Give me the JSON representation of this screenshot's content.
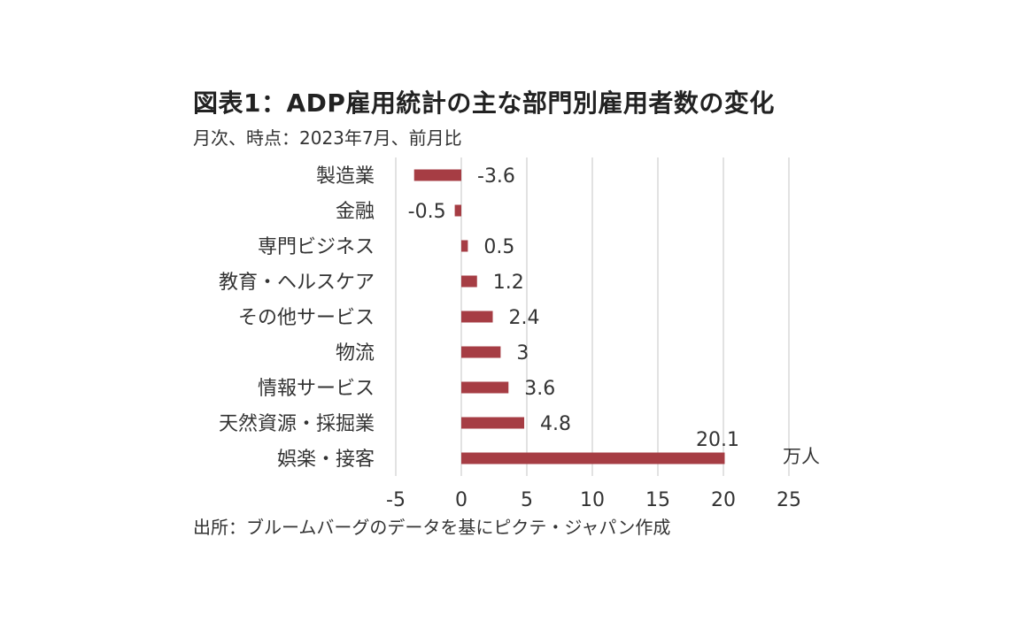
{
  "header": {
    "title": "図表1：ADP雇用統計の主な部門別雇用者数の変化",
    "subtitle": "月次、時点：2023年7月、前月比"
  },
  "unit_label": "万人",
  "source": "出所：ブルームバーグのデータを基にピクテ・ジャパン作成",
  "colors": {
    "bar": "#a63d44",
    "grid": "#d9d9d9"
  },
  "chart_data": {
    "type": "bar",
    "orientation": "horizontal",
    "categories": [
      "製造業",
      "金融",
      "専門ビジネス",
      "教育・ヘルスケア",
      "その他サービス",
      "物流",
      "情報サービス",
      "天然資源・採掘業",
      "娯楽・接客"
    ],
    "values": [
      -3.6,
      -0.5,
      0.5,
      1.2,
      2.4,
      3,
      3.6,
      4.8,
      20.1
    ],
    "value_labels": [
      "-3.6",
      "-0.5",
      "0.5",
      "1.2",
      "2.4",
      "3",
      "3.6",
      "4.8",
      "20.1"
    ],
    "x_ticks": [
      -5,
      0,
      5,
      10,
      15,
      20,
      25
    ],
    "x_tick_labels": [
      "-5",
      "0",
      "5",
      "10",
      "15",
      "20",
      "25"
    ],
    "xlim": [
      -5,
      25
    ],
    "grid": true,
    "legend": "none"
  }
}
